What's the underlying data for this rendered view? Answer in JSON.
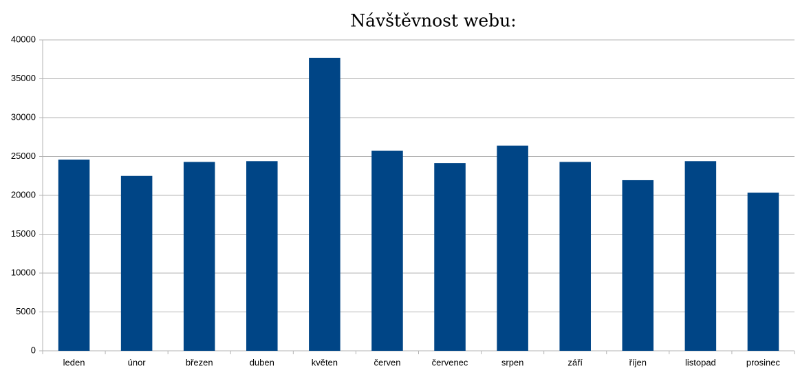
{
  "chart_data": {
    "type": "bar",
    "title": "Návštěvnost webu:",
    "categories": [
      "leden",
      "únor",
      "březen",
      "duben",
      "květen",
      "červen",
      "červenec",
      "srpen",
      "září",
      "říjen",
      "listopad",
      "prosinec"
    ],
    "values": [
      24600,
      22500,
      24300,
      24400,
      37700,
      25750,
      24150,
      26400,
      24300,
      21950,
      24400,
      20350
    ],
    "color": "#004586",
    "ylim": [
      0,
      40000
    ],
    "yticks": [
      0,
      5000,
      10000,
      15000,
      20000,
      25000,
      30000,
      35000,
      40000
    ],
    "grid": true
  }
}
